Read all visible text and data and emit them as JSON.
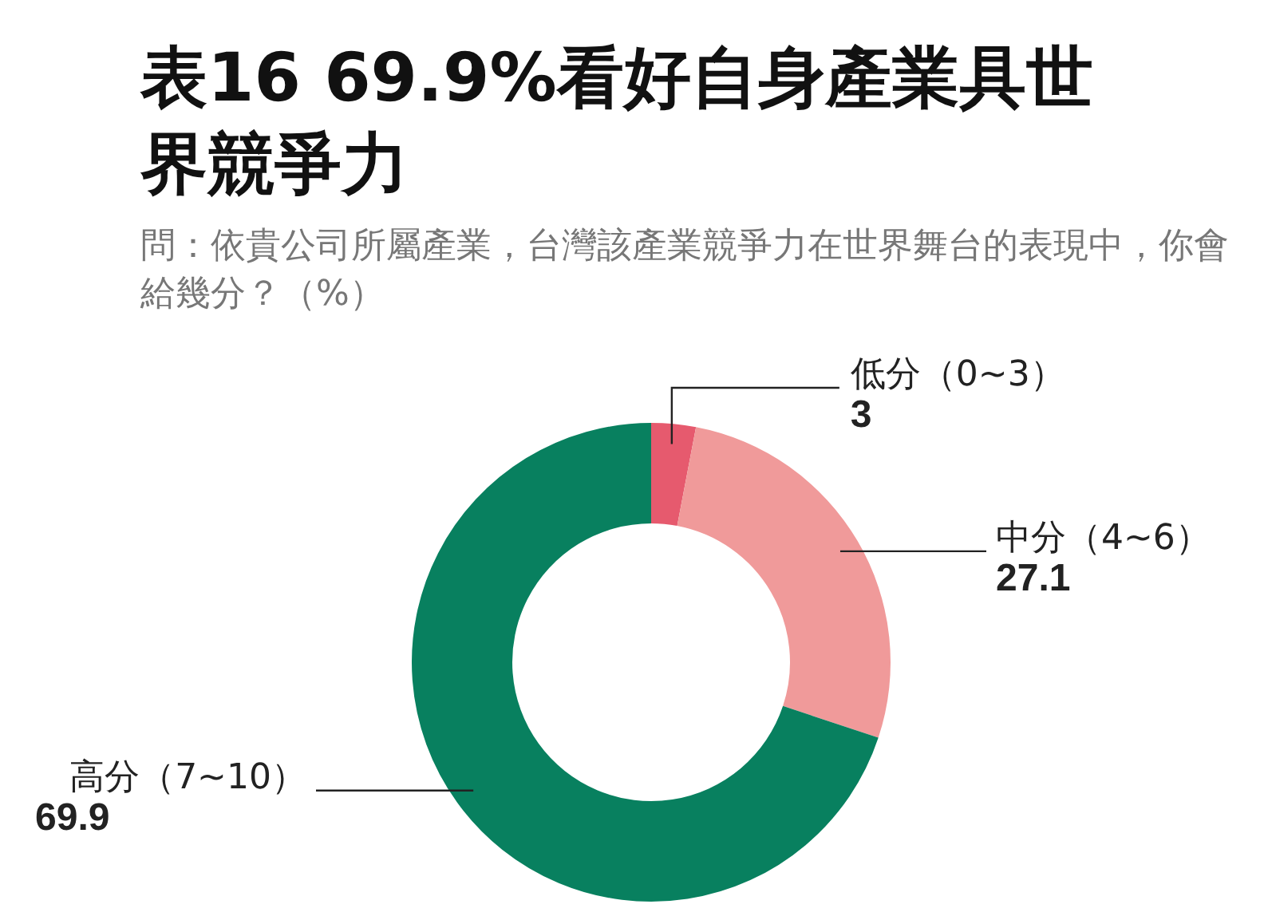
{
  "chart_data": {
    "type": "donut",
    "title": "表16 69.9%看好自身產業具世界競爭力",
    "subtitle": "問：依貴公司所屬產業，台灣該產業競爭力在世界舞台的表現中，你會給幾分？（%）",
    "categories": [
      "低分（0~3）",
      "中分（4~6）",
      "高分（7~10）"
    ],
    "values": [
      3,
      27.1,
      69.9
    ],
    "colors": [
      "#e65a6e",
      "#f09a9a",
      "#08805f"
    ],
    "data_labels": true,
    "legend": false
  }
}
